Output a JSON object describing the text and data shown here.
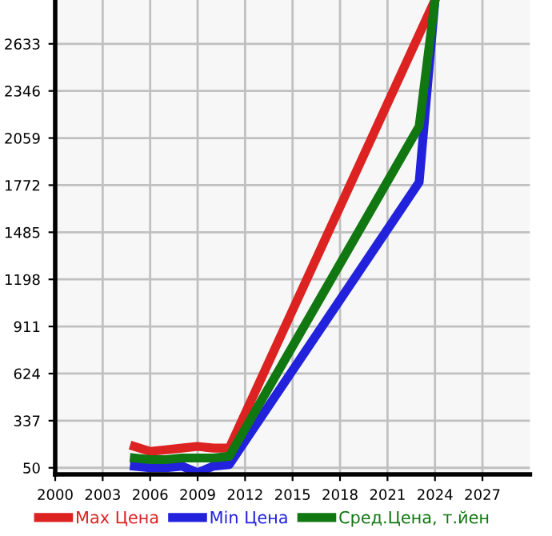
{
  "chart_data": {
    "type": "line",
    "x": [
      2005,
      2006,
      2007,
      2008,
      2009,
      2010,
      2011,
      2023,
      2024
    ],
    "series": [
      {
        "name": "Max Цена",
        "color": "#dd2222",
        "values": [
          180,
          150,
          160,
          170,
          180,
          170,
          170,
          null,
          2900
        ]
      },
      {
        "name": "Min Цена",
        "color": "#2222dd",
        "values": [
          60,
          50,
          50,
          60,
          20,
          60,
          70,
          1790,
          2900
        ]
      },
      {
        "name": "Сред.Цена, т.йен",
        "color": "#117711",
        "values": [
          110,
          100,
          100,
          110,
          110,
          110,
          120,
          2130,
          2900
        ]
      }
    ],
    "xlim": [
      2000,
      2030
    ],
    "xticks": [
      2000,
      2003,
      2006,
      2009,
      2012,
      2015,
      2018,
      2021,
      2024,
      2027
    ],
    "ylim": [
      10,
      2900
    ],
    "yticks": [
      50,
      337,
      624,
      911,
      1198,
      1485,
      1772,
      2059,
      2346,
      2633
    ],
    "grid": true,
    "legend": "bottom",
    "marker": "none",
    "line_style": "solid"
  }
}
